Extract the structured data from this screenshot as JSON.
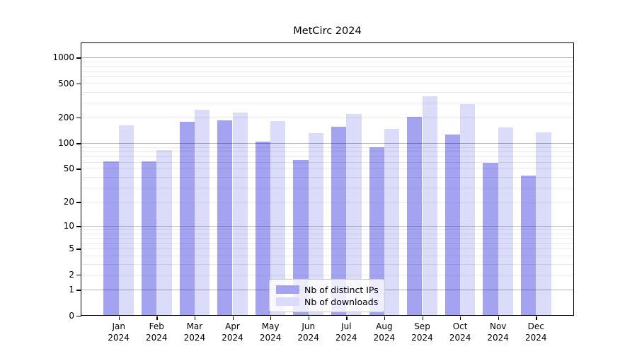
{
  "chart_data": {
    "type": "bar",
    "title": "MetCirc 2024",
    "categories": [
      "Jan",
      "Feb",
      "Mar",
      "Apr",
      "May",
      "Jun",
      "Jul",
      "Aug",
      "Sep",
      "Oct",
      "Nov",
      "Dec"
    ],
    "category_year": "2024",
    "series": [
      {
        "name": "Nb of distinct IPs",
        "color": "#a3a3f2",
        "values": [
          59,
          59,
          173,
          177,
          100,
          61,
          150,
          87,
          197,
          122,
          57,
          40
        ]
      },
      {
        "name": "Nb of downloads",
        "color": "#dbdbfa",
        "values": [
          155,
          80,
          237,
          222,
          176,
          127,
          213,
          142,
          338,
          275,
          148,
          130
        ]
      }
    ],
    "y_axis": {
      "scale": "log1p",
      "ticks": [
        0,
        1,
        2,
        5,
        10,
        20,
        50,
        100,
        200,
        500,
        1000
      ],
      "max": 1467,
      "major_gridlines": [
        1,
        10,
        100,
        1000
      ]
    },
    "xlabel": "",
    "ylabel": "",
    "grid": true,
    "legend_position": "lower center",
    "colors": {
      "major_grid": "rgba(0,0,0,0.30)",
      "minor_grid": "rgba(0,0,0,0.08)",
      "spine": "#000000",
      "background": "#ffffff"
    }
  }
}
